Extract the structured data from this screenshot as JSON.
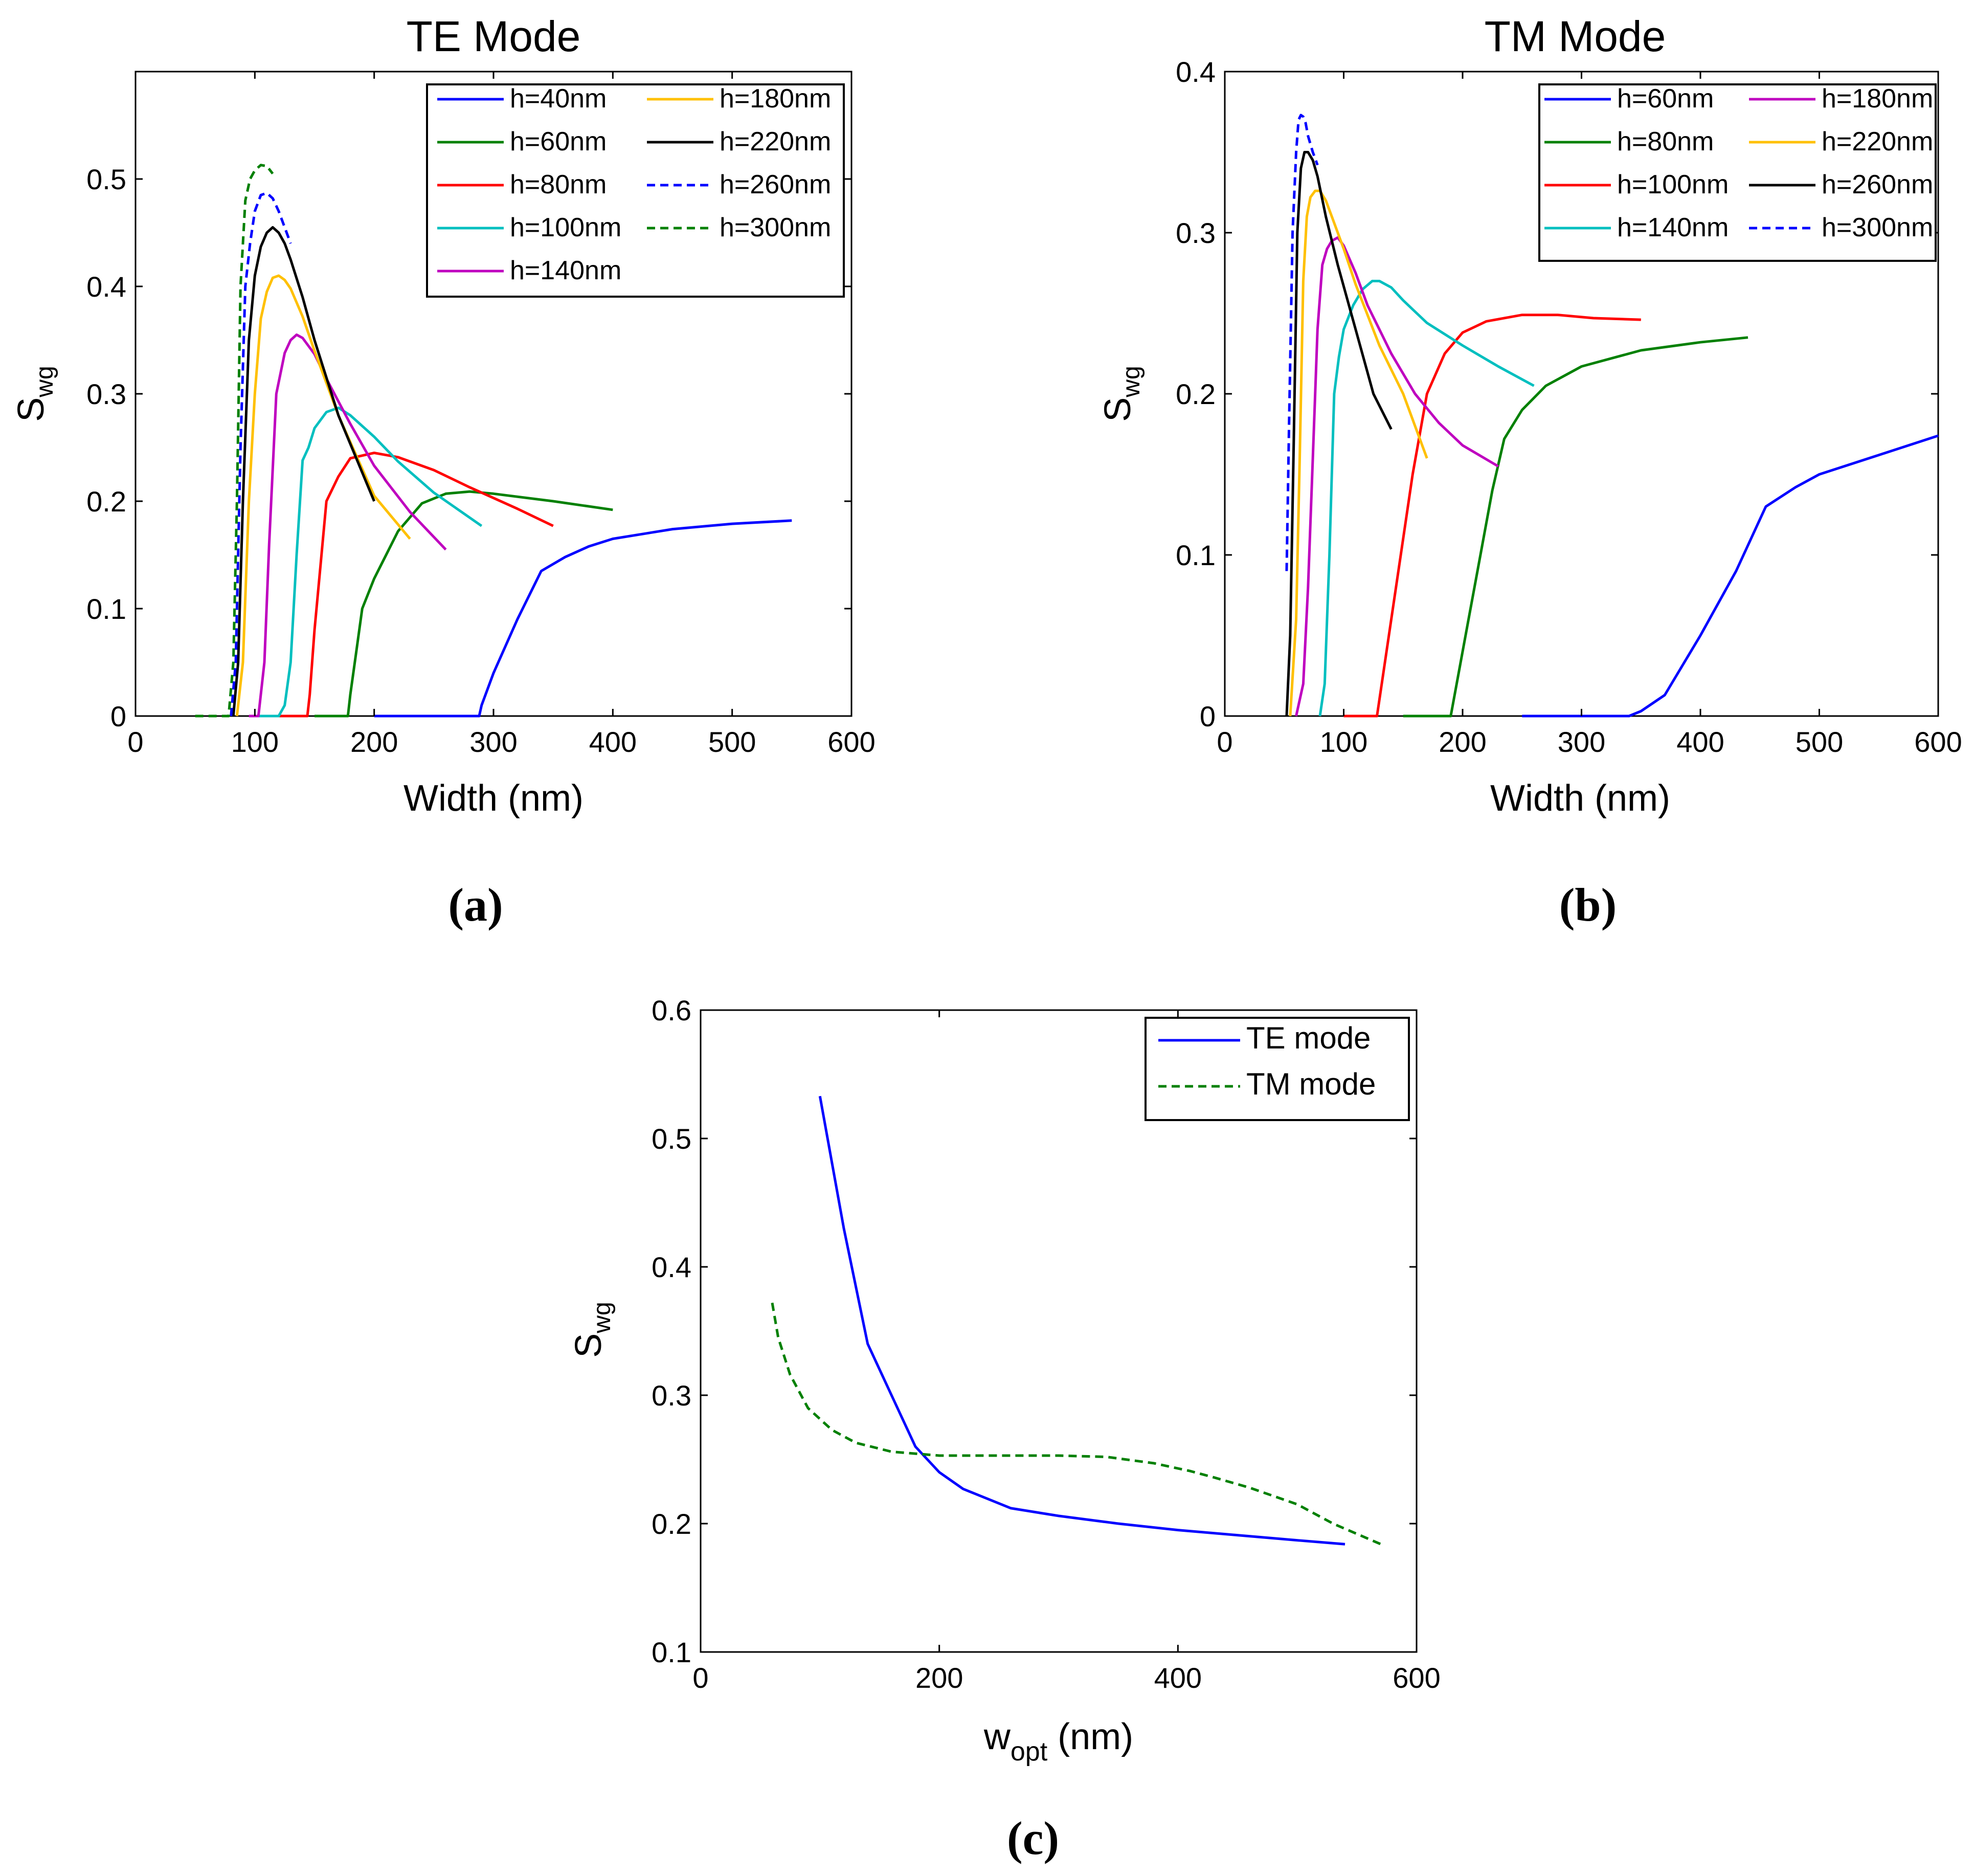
{
  "chart_data": [
    {
      "id": "a",
      "type": "line",
      "title": "TE Mode",
      "xlabel": "Width (nm)",
      "ylabel": "S",
      "ylabel_sub": "wg",
      "caption": "(a)",
      "xlim": [
        0,
        600
      ],
      "ylim": [
        0,
        0.6
      ],
      "xticks": [
        0,
        100,
        200,
        300,
        400,
        500,
        600
      ],
      "yticks": [
        0,
        0.1,
        0.2,
        0.3,
        0.4,
        0.5
      ],
      "ytick_labels": [
        "0",
        "0.1",
        "0.2",
        "0.3",
        "0.4",
        "0.5"
      ],
      "legend_columns": 2,
      "series": [
        {
          "name": "h=40nm",
          "color": "#0000ff",
          "dash": false,
          "x": [
            200,
            288,
            290,
            300,
            320,
            340,
            360,
            380,
            400,
            450,
            500,
            550
          ],
          "y": [
            0,
            0,
            0.01,
            0.04,
            0.09,
            0.135,
            0.148,
            0.158,
            0.165,
            0.174,
            0.179,
            0.182
          ]
        },
        {
          "name": "h=60nm",
          "color": "#008000",
          "dash": false,
          "x": [
            150,
            178,
            180,
            185,
            190,
            200,
            220,
            240,
            260,
            280,
            300,
            350,
            400
          ],
          "y": [
            0,
            0,
            0.02,
            0.06,
            0.1,
            0.128,
            0.172,
            0.198,
            0.207,
            0.209,
            0.207,
            0.2,
            0.192
          ]
        },
        {
          "name": "h=80nm",
          "color": "#ff0000",
          "dash": false,
          "x": [
            120,
            144,
            146,
            150,
            155,
            160,
            170,
            180,
            200,
            220,
            250,
            280,
            300,
            320,
            350
          ],
          "y": [
            0,
            0,
            0.02,
            0.08,
            0.14,
            0.2,
            0.223,
            0.24,
            0.245,
            0.241,
            0.229,
            0.213,
            0.203,
            0.193,
            0.177
          ]
        },
        {
          "name": "h=100nm",
          "color": "#00bfbf",
          "dash": false,
          "x": [
            100,
            120,
            125,
            130,
            135,
            140,
            145,
            150,
            160,
            170,
            180,
            200,
            220,
            250,
            290
          ],
          "y": [
            0,
            0,
            0.01,
            0.05,
            0.15,
            0.238,
            0.25,
            0.268,
            0.283,
            0.287,
            0.28,
            0.26,
            0.237,
            0.208,
            0.177
          ]
        },
        {
          "name": "h=140nm",
          "color": "#bf00bf",
          "dash": false,
          "x": [
            95,
            103,
            108,
            112,
            118,
            125,
            130,
            135,
            140,
            150,
            160,
            180,
            200,
            230,
            260
          ],
          "y": [
            0,
            0,
            0.05,
            0.16,
            0.3,
            0.338,
            0.35,
            0.355,
            0.352,
            0.337,
            0.314,
            0.272,
            0.233,
            0.19,
            0.155
          ]
        },
        {
          "name": "h=180nm",
          "color": "#ffc000",
          "dash": false,
          "x": [
            85,
            90,
            95,
            100,
            105,
            110,
            115,
            120,
            125,
            130,
            140,
            150,
            170,
            200,
            230
          ],
          "y": [
            0,
            0.05,
            0.2,
            0.3,
            0.37,
            0.395,
            0.408,
            0.41,
            0.406,
            0.398,
            0.372,
            0.34,
            0.28,
            0.205,
            0.165
          ]
        },
        {
          "name": "h=220nm",
          "color": "#000000",
          "dash": false,
          "x": [
            82,
            86,
            90,
            95,
            100,
            105,
            110,
            115,
            120,
            125,
            130,
            140,
            150,
            170,
            200
          ],
          "y": [
            0,
            0.05,
            0.2,
            0.35,
            0.41,
            0.437,
            0.45,
            0.455,
            0.45,
            0.44,
            0.425,
            0.39,
            0.35,
            0.28,
            0.2
          ]
        },
        {
          "name": "h=260nm",
          "color": "#0000ff",
          "dash": true,
          "x": [
            80,
            84,
            88,
            92,
            96,
            100,
            105,
            110,
            115,
            120,
            125,
            130
          ],
          "y": [
            0,
            0.05,
            0.25,
            0.4,
            0.44,
            0.47,
            0.485,
            0.487,
            0.482,
            0.47,
            0.455,
            0.44
          ]
        },
        {
          "name": "h=300nm",
          "color": "#008000",
          "dash": true,
          "x": [
            50,
            78,
            82,
            85,
            88,
            92,
            96,
            100,
            105,
            110,
            115
          ],
          "y": [
            0,
            0,
            0.05,
            0.2,
            0.4,
            0.48,
            0.5,
            0.508,
            0.513,
            0.512,
            0.505
          ]
        }
      ]
    },
    {
      "id": "b",
      "type": "line",
      "title": "TM Mode",
      "xlabel": "Width (nm)",
      "ylabel": "S",
      "ylabel_sub": "wg",
      "caption": "(b)",
      "xlim": [
        0,
        600
      ],
      "ylim": [
        0,
        0.4
      ],
      "xticks": [
        0,
        100,
        200,
        300,
        400,
        500,
        600
      ],
      "yticks": [
        0,
        0.1,
        0.2,
        0.3,
        0.4
      ],
      "ytick_labels": [
        "0",
        "0.1",
        "0.2",
        "0.3",
        "0.4"
      ],
      "legend_columns": 2,
      "series": [
        {
          "name": "h=60nm",
          "color": "#0000ff",
          "dash": false,
          "x": [
            250,
            340,
            350,
            370,
            400,
            430,
            455,
            480,
            500,
            550,
            600
          ],
          "y": [
            0,
            0,
            0.003,
            0.013,
            0.05,
            0.09,
            0.13,
            0.142,
            0.15,
            0.162,
            0.174
          ]
        },
        {
          "name": "h=80nm",
          "color": "#008000",
          "dash": false,
          "x": [
            150,
            190,
            195,
            205,
            215,
            225,
            235,
            250,
            270,
            300,
            350,
            400,
            440
          ],
          "y": [
            0,
            0,
            0.02,
            0.06,
            0.1,
            0.14,
            0.172,
            0.19,
            0.205,
            0.217,
            0.227,
            0.232,
            0.235
          ]
        },
        {
          "name": "h=100nm",
          "color": "#ff0000",
          "dash": false,
          "x": [
            100,
            128,
            132,
            140,
            148,
            158,
            170,
            185,
            200,
            220,
            250,
            280,
            310,
            350
          ],
          "y": [
            0,
            0,
            0.02,
            0.06,
            0.1,
            0.15,
            0.2,
            0.225,
            0.238,
            0.245,
            0.249,
            0.249,
            0.247,
            0.246
          ]
        },
        {
          "name": "h=140nm",
          "color": "#00bfbf",
          "dash": false,
          "x": [
            80,
            84,
            88,
            92,
            96,
            100,
            108,
            116,
            124,
            130,
            140,
            150,
            170,
            200,
            230,
            260
          ],
          "y": [
            0,
            0.02,
            0.1,
            0.2,
            0.223,
            0.24,
            0.255,
            0.265,
            0.27,
            0.27,
            0.266,
            0.258,
            0.244,
            0.23,
            0.217,
            0.205
          ]
        },
        {
          "name": "h=180nm",
          "color": "#bf00bf",
          "dash": false,
          "x": [
            60,
            66,
            70,
            74,
            78,
            82,
            86,
            90,
            95,
            100,
            110,
            120,
            140,
            160,
            180,
            200,
            230
          ],
          "y": [
            0,
            0.02,
            0.08,
            0.16,
            0.24,
            0.28,
            0.29,
            0.295,
            0.297,
            0.292,
            0.275,
            0.255,
            0.225,
            0.2,
            0.182,
            0.168,
            0.155
          ]
        },
        {
          "name": "h=220nm",
          "color": "#ffc000",
          "dash": false,
          "x": [
            55,
            60,
            63,
            66,
            69,
            72,
            76,
            80,
            85,
            90,
            100,
            110,
            130,
            150,
            170
          ],
          "y": [
            0,
            0.06,
            0.16,
            0.27,
            0.31,
            0.322,
            0.326,
            0.326,
            0.32,
            0.31,
            0.29,
            0.268,
            0.23,
            0.2,
            0.16
          ]
        },
        {
          "name": "h=260nm",
          "color": "#000000",
          "dash": false,
          "x": [
            52,
            55,
            58,
            61,
            64,
            67,
            70,
            74,
            78,
            85,
            95,
            110,
            125,
            140
          ],
          "y": [
            0,
            0.05,
            0.17,
            0.3,
            0.34,
            0.35,
            0.35,
            0.345,
            0.335,
            0.31,
            0.28,
            0.24,
            0.2,
            0.178
          ]
        },
        {
          "name": "h=300nm",
          "color": "#0000ff",
          "dash": true,
          "x": [
            52,
            54,
            57,
            60,
            62,
            64,
            66,
            68,
            70,
            74,
            78
          ],
          "y": [
            0.09,
            0.18,
            0.3,
            0.35,
            0.37,
            0.373,
            0.372,
            0.368,
            0.36,
            0.35,
            0.342
          ]
        }
      ]
    },
    {
      "id": "c",
      "type": "line",
      "title": "",
      "xlabel": "w",
      "xlabel_sub": "opt",
      "xlabel_suffix": " (nm)",
      "ylabel": "S",
      "ylabel_sub": "wg",
      "caption": "(c)",
      "xlim": [
        0,
        600
      ],
      "ylim": [
        0.1,
        0.6
      ],
      "xticks": [
        0,
        200,
        400,
        600
      ],
      "yticks": [
        0.1,
        0.2,
        0.3,
        0.4,
        0.5,
        0.6
      ],
      "ytick_labels": [
        "0.1",
        "0.2",
        "0.3",
        "0.4",
        "0.5",
        "0.6"
      ],
      "legend_columns": 1,
      "series": [
        {
          "name": "TE mode",
          "color": "#0000ff",
          "dash": false,
          "x": [
            100,
            120,
            140,
            160,
            180,
            200,
            220,
            260,
            300,
            350,
            400,
            450,
            500,
            540
          ],
          "y": [
            0.533,
            0.43,
            0.34,
            0.3,
            0.26,
            0.24,
            0.227,
            0.212,
            0.206,
            0.2,
            0.195,
            0.191,
            0.187,
            0.184
          ]
        },
        {
          "name": "TM mode",
          "color": "#008000",
          "dash": true,
          "x": [
            60,
            65,
            75,
            90,
            110,
            130,
            160,
            200,
            250,
            300,
            340,
            380,
            410,
            430,
            460,
            500,
            530,
            570
          ],
          "y": [
            0.372,
            0.345,
            0.316,
            0.29,
            0.273,
            0.263,
            0.256,
            0.253,
            0.253,
            0.253,
            0.252,
            0.247,
            0.241,
            0.236,
            0.228,
            0.215,
            0.2,
            0.184
          ]
        }
      ]
    }
  ]
}
